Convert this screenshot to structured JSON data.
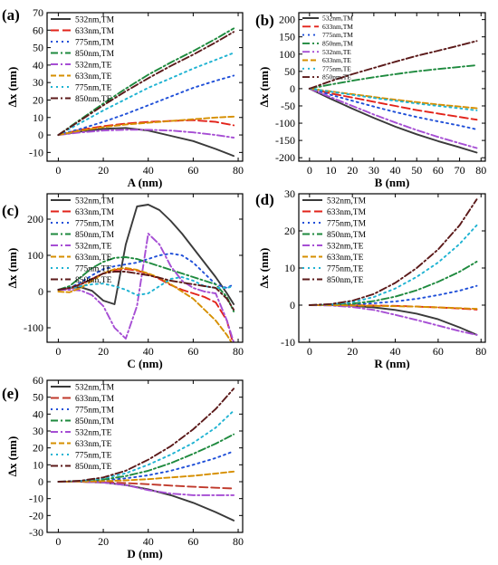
{
  "chart_data": [
    {
      "type": "line",
      "panel_label": "(a)",
      "xlabel": "A (nm)",
      "ylabel": "Δx (nm)",
      "xlim": [
        -5,
        82
      ],
      "ylim": [
        -15,
        70
      ],
      "xticks": [
        0,
        20,
        40,
        60,
        80
      ],
      "yticks": [
        -10,
        0,
        10,
        20,
        30,
        40,
        50,
        60,
        70
      ],
      "x": [
        0,
        10,
        20,
        30,
        40,
        50,
        60,
        70,
        78
      ],
      "legend": "top-left",
      "series": [
        {
          "name": "532nm,TM",
          "color": "#3a3a3a",
          "dash": "solid",
          "values": [
            0,
            2,
            3.5,
            4,
            2.5,
            -0.5,
            -3.5,
            -8,
            -12
          ]
        },
        {
          "name": "633nm,TM",
          "color": "#e2231a",
          "dash": "long-dash",
          "values": [
            0,
            3,
            5,
            6.5,
            7.5,
            8,
            8.5,
            7.5,
            5.5
          ]
        },
        {
          "name": "775nm,TM",
          "color": "#1f4fd8",
          "dash": "dot",
          "values": [
            0,
            3.5,
            7.5,
            12,
            17,
            22,
            27,
            31,
            34
          ]
        },
        {
          "name": "850nm,TM",
          "color": "#1e8a3e",
          "dash": "dash-dot",
          "values": [
            0,
            9,
            18,
            26.5,
            34.5,
            41.5,
            48,
            55,
            61
          ]
        },
        {
          "name": "532nm,TE",
          "color": "#a64ed4",
          "dash": "dash-dot",
          "values": [
            0,
            1.5,
            2.5,
            3,
            3,
            2.5,
            1.5,
            0,
            -1.5
          ]
        },
        {
          "name": "633nm,TE",
          "color": "#d68f00",
          "dash": "dash",
          "values": [
            0,
            2.5,
            4.5,
            6,
            7,
            8,
            9,
            10,
            10.5
          ]
        },
        {
          "name": "775nm,TE",
          "color": "#1fb3d2",
          "dash": "dot",
          "values": [
            0,
            7,
            14,
            20.5,
            27,
            32.5,
            38,
            43,
            47
          ]
        },
        {
          "name": "850nm,TE",
          "color": "#5b1a1a",
          "dash": "dash-dot",
          "values": [
            0,
            8.5,
            17,
            25,
            32.5,
            39.5,
            46,
            53,
            59
          ]
        }
      ]
    },
    {
      "type": "line",
      "panel_label": "(b)",
      "xlabel": "B (nm)",
      "ylabel": "Δx (nm)",
      "xlim": [
        -5,
        82
      ],
      "ylim": [
        -210,
        220
      ],
      "xticks": [
        0,
        10,
        20,
        30,
        40,
        50,
        60,
        70,
        80
      ],
      "yticks": [
        -200,
        -150,
        -100,
        -50,
        0,
        50,
        100,
        150,
        200
      ],
      "x": [
        0,
        10,
        20,
        30,
        40,
        50,
        60,
        70,
        78
      ],
      "legend": "top-left",
      "series": [
        {
          "name": "532nm,TM",
          "color": "#3a3a3a",
          "dash": "solid",
          "values": [
            0,
            -30,
            -58,
            -85,
            -110,
            -132,
            -152,
            -170,
            -185
          ]
        },
        {
          "name": "633nm,TM",
          "color": "#e2231a",
          "dash": "long-dash",
          "values": [
            0,
            -14,
            -26,
            -38,
            -50,
            -62,
            -72,
            -82,
            -90
          ]
        },
        {
          "name": "775nm,TM",
          "color": "#1f4fd8",
          "dash": "dot",
          "values": [
            0,
            -18,
            -35,
            -52,
            -68,
            -82,
            -95,
            -107,
            -118
          ]
        },
        {
          "name": "850nm,TM",
          "color": "#1e8a3e",
          "dash": "dash-dot",
          "values": [
            0,
            12,
            23,
            33,
            42,
            50,
            57,
            63,
            68
          ]
        },
        {
          "name": "532nm,TE",
          "color": "#a64ed4",
          "dash": "dash-dot",
          "values": [
            0,
            -25,
            -50,
            -75,
            -98,
            -120,
            -140,
            -158,
            -172
          ]
        },
        {
          "name": "633nm,TE",
          "color": "#d68f00",
          "dash": "dash",
          "values": [
            0,
            -8,
            -16,
            -24,
            -32,
            -39,
            -46,
            -52,
            -57
          ]
        },
        {
          "name": "775nm,TE",
          "color": "#1fb3d2",
          "dash": "dot",
          "values": [
            0,
            -9,
            -18,
            -27,
            -35,
            -43,
            -50,
            -57,
            -63
          ]
        },
        {
          "name": "850nm,TE",
          "color": "#5b1a1a",
          "dash": "dash-dot",
          "values": [
            0,
            22,
            42,
            60,
            78,
            95,
            110,
            125,
            138
          ]
        }
      ]
    },
    {
      "type": "line",
      "panel_label": "(c)",
      "xlabel": "C (nm)",
      "ylabel": "Δx (nm)",
      "xlim": [
        -5,
        82
      ],
      "ylim": [
        -140,
        270
      ],
      "xticks": [
        0,
        20,
        40,
        60,
        80
      ],
      "yticks": [
        -100,
        0,
        100,
        200
      ],
      "x": [
        0,
        5,
        10,
        15,
        20,
        25,
        30,
        35,
        40,
        45,
        50,
        55,
        60,
        65,
        70,
        75,
        78
      ],
      "legend": "top-left",
      "series": [
        {
          "name": "532nm,TM",
          "color": "#3a3a3a",
          "dash": "solid",
          "values": [
            5,
            10,
            12,
            2,
            -25,
            -35,
            130,
            235,
            240,
            225,
            195,
            160,
            120,
            80,
            40,
            -5,
            -35
          ]
        },
        {
          "name": "633nm,TM",
          "color": "#e2231a",
          "dash": "long-dash",
          "values": [
            5,
            8,
            20,
            35,
            50,
            60,
            62,
            58,
            48,
            35,
            18,
            5,
            -5,
            -15,
            -30,
            -80,
            -150
          ]
        },
        {
          "name": "775nm,TM",
          "color": "#1f4fd8",
          "dash": "dot",
          "values": [
            5,
            10,
            25,
            45,
            62,
            70,
            75,
            80,
            90,
            100,
            105,
            100,
            80,
            50,
            20,
            10,
            20
          ]
        },
        {
          "name": "850nm,TM",
          "color": "#1e8a3e",
          "dash": "dash-dot",
          "values": [
            5,
            15,
            40,
            65,
            82,
            93,
            95,
            90,
            80,
            70,
            60,
            50,
            40,
            30,
            20,
            -15,
            -55
          ]
        },
        {
          "name": "532nm,TE",
          "color": "#a64ed4",
          "dash": "dash-dot",
          "values": [
            5,
            5,
            3,
            -10,
            -40,
            -100,
            -130,
            -40,
            160,
            130,
            70,
            30,
            10,
            0,
            -5,
            -80,
            -140
          ]
        },
        {
          "name": "633nm,TE",
          "color": "#d68f00",
          "dash": "dash",
          "values": [
            0,
            -2,
            10,
            30,
            50,
            62,
            65,
            60,
            50,
            38,
            20,
            0,
            -20,
            -50,
            -80,
            -120,
            -150
          ]
        },
        {
          "name": "775nm,TE",
          "color": "#1fb3d2",
          "dash": "dot",
          "values": [
            5,
            10,
            15,
            20,
            22,
            15,
            5,
            -10,
            -5,
            15,
            35,
            40,
            30,
            15,
            10,
            10,
            15
          ]
        },
        {
          "name": "850nm,TE",
          "color": "#5b1a1a",
          "dash": "dash-dot",
          "values": [
            5,
            10,
            20,
            35,
            50,
            55,
            55,
            50,
            45,
            38,
            30,
            25,
            20,
            15,
            10,
            -20,
            -50
          ]
        }
      ]
    },
    {
      "type": "line",
      "panel_label": "(d)",
      "xlabel": "R (nm)",
      "ylabel": "Δx (nm)",
      "xlim": [
        -5,
        82
      ],
      "ylim": [
        -10,
        30
      ],
      "xticks": [
        0,
        20,
        40,
        60,
        80
      ],
      "yticks": [
        -10,
        0,
        10,
        20,
        30
      ],
      "x": [
        0,
        10,
        20,
        30,
        40,
        50,
        60,
        70,
        78
      ],
      "legend": "top-left",
      "series": [
        {
          "name": "532nm,TM",
          "color": "#3a3a3a",
          "dash": "solid",
          "values": [
            0,
            0,
            -0.2,
            -0.6,
            -1.3,
            -2.3,
            -3.8,
            -6,
            -8
          ]
        },
        {
          "name": "633nm,TM",
          "color": "#e2231a",
          "dash": "long-dash",
          "values": [
            0,
            0,
            0,
            -0.1,
            -0.2,
            -0.4,
            -0.6,
            -0.9,
            -1.2
          ]
        },
        {
          "name": "775nm,TM",
          "color": "#1f4fd8",
          "dash": "dot",
          "values": [
            0,
            0,
            0.2,
            0.5,
            1,
            1.7,
            2.7,
            3.9,
            5.2
          ]
        },
        {
          "name": "850nm,TM",
          "color": "#1e8a3e",
          "dash": "dash-dot",
          "values": [
            0,
            0.1,
            0.4,
            1.1,
            2.3,
            4,
            6.3,
            9,
            11.7
          ]
        },
        {
          "name": "532nm,TE",
          "color": "#a64ed4",
          "dash": "dash-dot",
          "values": [
            0,
            -0.1,
            -0.5,
            -1.3,
            -2.6,
            -4,
            -5.5,
            -7,
            -8
          ]
        },
        {
          "name": "633nm,TE",
          "color": "#d68f00",
          "dash": "dash",
          "values": [
            0,
            0,
            -0.1,
            -0.2,
            -0.3,
            -0.4,
            -0.6,
            -0.8,
            -1
          ]
        },
        {
          "name": "775nm,TE",
          "color": "#1fb3d2",
          "dash": "dot",
          "values": [
            0,
            0.2,
            0.8,
            2.2,
            4.5,
            7.6,
            11.5,
            16.5,
            21.5
          ]
        },
        {
          "name": "850nm,TE",
          "color": "#5b1a1a",
          "dash": "dash-dot",
          "values": [
            0,
            0.3,
            1.2,
            3,
            6,
            10,
            15,
            21.5,
            28.5
          ]
        }
      ]
    },
    {
      "type": "line",
      "panel_label": "(e)",
      "xlabel": "D (nm)",
      "ylabel": "Δx (nm)",
      "xlim": [
        -5,
        82
      ],
      "ylim": [
        -30,
        60
      ],
      "xticks": [
        0,
        20,
        40,
        60,
        80
      ],
      "yticks": [
        -30,
        -20,
        -10,
        0,
        10,
        20,
        30,
        40,
        50,
        60
      ],
      "x": [
        0,
        10,
        20,
        30,
        40,
        50,
        60,
        70,
        78
      ],
      "legend": "top-left",
      "series": [
        {
          "name": "532nm,TM",
          "color": "#3a3a3a",
          "dash": "solid",
          "values": [
            0,
            0,
            -0.5,
            -2,
            -4.5,
            -8,
            -12.5,
            -18,
            -23
          ]
        },
        {
          "name": "633nm,TM",
          "color": "#c0392b",
          "dash": "long-dash",
          "values": [
            0,
            0,
            -0.3,
            -0.8,
            -1.5,
            -2.3,
            -3,
            -3.6,
            -4
          ]
        },
        {
          "name": "775nm,TM",
          "color": "#1f4fd8",
          "dash": "dot",
          "values": [
            0,
            0.2,
            0.8,
            2,
            3.8,
            6.5,
            10,
            14,
            18
          ]
        },
        {
          "name": "850nm,TM",
          "color": "#1e8a3e",
          "dash": "dash-dot",
          "values": [
            0,
            0.3,
            1.3,
            3.3,
            6.5,
            11,
            16.5,
            22.5,
            28
          ]
        },
        {
          "name": "532nm,TE",
          "color": "#a64ed4",
          "dash": "dash-dot",
          "values": [
            0,
            0,
            -0.5,
            -2,
            -5,
            -7,
            -8,
            -8,
            -8
          ]
        },
        {
          "name": "633nm,TE",
          "color": "#d68f00",
          "dash": "dash",
          "values": [
            0,
            0.1,
            0.3,
            0.8,
            1.5,
            2.5,
            3.5,
            4.8,
            6
          ]
        },
        {
          "name": "775nm,TE",
          "color": "#1fb3d2",
          "dash": "dot",
          "values": [
            0,
            0.5,
            2,
            5,
            10,
            16,
            23,
            32,
            42
          ]
        },
        {
          "name": "850nm,TE",
          "color": "#5b1a1a",
          "dash": "dash-dot",
          "values": [
            0,
            0.6,
            2.5,
            6.5,
            13,
            21,
            31,
            43,
            55
          ]
        }
      ]
    }
  ]
}
